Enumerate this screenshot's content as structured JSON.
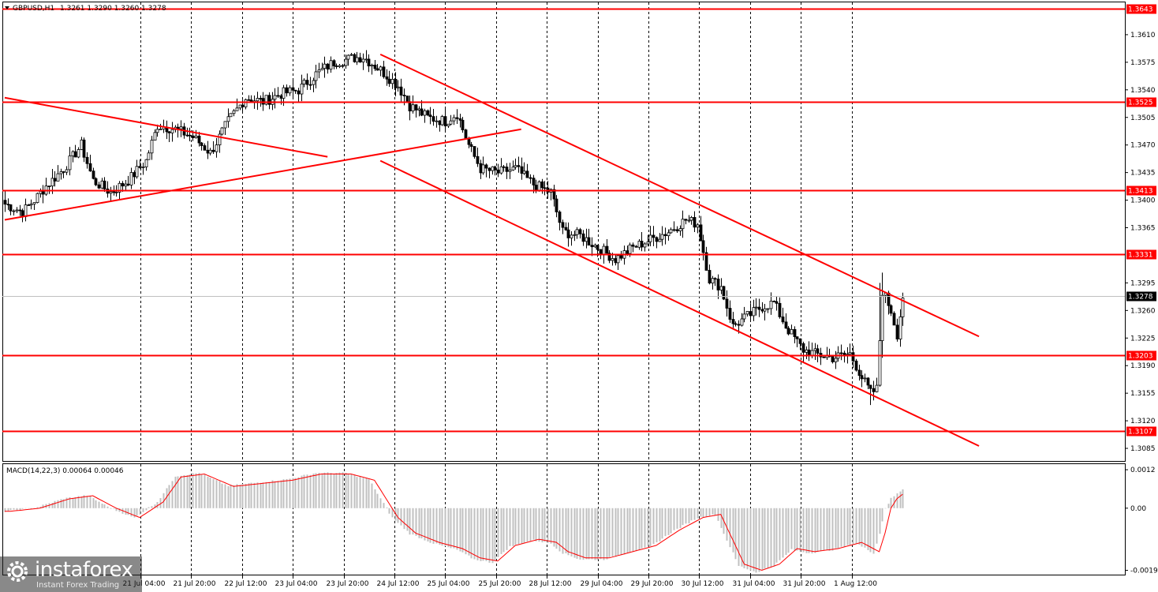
{
  "header": {
    "symbol_label": "GBPUSD,H1",
    "ohlc_label": "1.3261 1.3290 1.3260 1.3278"
  },
  "macd": {
    "label": "MACD(14,22,3) 0.00064 0.00046",
    "axis_labels": [
      "0.0012",
      "0.00",
      "-0.00194"
    ],
    "axis_values": [
      0.0012,
      0.0,
      -0.00194
    ],
    "range": [
      -0.00205,
      0.00135
    ]
  },
  "watermark": {
    "brand": "instaforex",
    "tagline": "Instant Forex Trading"
  },
  "colors": {
    "level_line": "#ff0000",
    "trend_line": "#ff0000",
    "candle": "#000000",
    "grid": "#000000",
    "macd_hist": "#c0c0c0",
    "macd_signal": "#ff0000",
    "price_tag_bg": "#ff0000"
  },
  "chart_data": {
    "type": "candlestick",
    "title": "GBPUSD,H1",
    "x_tick_labels": [
      "21 Jul 04:00",
      "21 Jul 20:00",
      "22 Jul 12:00",
      "23 Jul 04:00",
      "23 Jul 20:00",
      "24 Jul 12:00",
      "25 Jul 04:00",
      "25 Jul 20:00",
      "28 Jul 12:00",
      "29 Jul 04:00",
      "29 Jul 20:00",
      "30 Jul 12:00",
      "31 Jul 04:00",
      "31 Jul 20:00",
      "1 Aug 12:00"
    ],
    "y_tick_labels": [
      "1.3610",
      "1.3575",
      "1.3540",
      "1.3505",
      "1.3470",
      "1.3435",
      "1.3400",
      "1.3365",
      "1.3295",
      "1.3260",
      "1.3225",
      "1.3190",
      "1.3155",
      "1.3120",
      "1.3085"
    ],
    "y_tick_values": [
      1.361,
      1.3575,
      1.354,
      1.3505,
      1.347,
      1.3435,
      1.34,
      1.3365,
      1.3295,
      1.326,
      1.3225,
      1.319,
      1.3155,
      1.312,
      1.3085
    ],
    "ylim": [
      1.307,
      1.365
    ],
    "current_price": 1.3278,
    "current_price_label": "1.3278",
    "horizontal_levels": [
      {
        "value": 1.3643,
        "label": "1.3643"
      },
      {
        "value": 1.3525,
        "label": "1.3525"
      },
      {
        "value": 1.3413,
        "label": "1.3413"
      },
      {
        "value": 1.3331,
        "label": "1.3331"
      },
      {
        "value": 1.3203,
        "label": "1.3203"
      },
      {
        "value": 1.3107,
        "label": "1.3107"
      }
    ],
    "close_path": [
      [
        0,
        1.3395
      ],
      [
        6,
        1.3385
      ],
      [
        10,
        1.34
      ],
      [
        14,
        1.3418
      ],
      [
        20,
        1.344
      ],
      [
        26,
        1.347
      ],
      [
        30,
        1.3425
      ],
      [
        36,
        1.341
      ],
      [
        42,
        1.3425
      ],
      [
        48,
        1.345
      ],
      [
        52,
        1.3495
      ],
      [
        58,
        1.349
      ],
      [
        64,
        1.348
      ],
      [
        70,
        1.346
      ],
      [
        76,
        1.35
      ],
      [
        82,
        1.353
      ],
      [
        88,
        1.3525
      ],
      [
        94,
        1.3535
      ],
      [
        100,
        1.354
      ],
      [
        106,
        1.356
      ],
      [
        112,
        1.3575
      ],
      [
        118,
        1.358
      ],
      [
        122,
        1.3582
      ],
      [
        128,
        1.3565
      ],
      [
        134,
        1.3545
      ],
      [
        138,
        1.352
      ],
      [
        144,
        1.3505
      ],
      [
        150,
        1.35
      ],
      [
        154,
        1.351
      ],
      [
        158,
        1.347
      ],
      [
        162,
        1.344
      ],
      [
        168,
        1.3435
      ],
      [
        174,
        1.344
      ],
      [
        180,
        1.342
      ],
      [
        186,
        1.341
      ],
      [
        190,
        1.336
      ],
      [
        196,
        1.3355
      ],
      [
        202,
        1.334
      ],
      [
        208,
        1.3325
      ],
      [
        214,
        1.334
      ],
      [
        220,
        1.335
      ],
      [
        226,
        1.336
      ],
      [
        232,
        1.3375
      ],
      [
        236,
        1.337
      ],
      [
        240,
        1.33
      ],
      [
        244,
        1.329
      ],
      [
        248,
        1.324
      ],
      [
        252,
        1.325
      ],
      [
        258,
        1.3265
      ],
      [
        262,
        1.327
      ],
      [
        266,
        1.324
      ],
      [
        272,
        1.321
      ],
      [
        276,
        1.3205
      ],
      [
        282,
        1.32
      ],
      [
        288,
        1.3205
      ],
      [
        292,
        1.3175
      ],
      [
        295,
        1.3155
      ],
      [
        297,
        1.316
      ],
      [
        299,
        1.3285
      ],
      [
        302,
        1.326
      ],
      [
        304,
        1.323
      ],
      [
        306,
        1.3278
      ]
    ],
    "macd_path": [
      [
        0,
        -0.0001
      ],
      [
        10,
        0.0
      ],
      [
        20,
        0.0003
      ],
      [
        28,
        0.0004
      ],
      [
        36,
        0.0
      ],
      [
        44,
        -0.0003
      ],
      [
        52,
        0.0002
      ],
      [
        58,
        0.001
      ],
      [
        66,
        0.0011
      ],
      [
        76,
        0.0007
      ],
      [
        86,
        0.0008
      ],
      [
        96,
        0.0009
      ],
      [
        106,
        0.0011
      ],
      [
        116,
        0.0011
      ],
      [
        124,
        0.0009
      ],
      [
        132,
        -0.0003
      ],
      [
        138,
        -0.0008
      ],
      [
        146,
        -0.0011
      ],
      [
        154,
        -0.0013
      ],
      [
        160,
        -0.0016
      ],
      [
        166,
        -0.0017
      ],
      [
        172,
        -0.0012
      ],
      [
        180,
        -0.001
      ],
      [
        186,
        -0.0011
      ],
      [
        190,
        -0.0014
      ],
      [
        196,
        -0.0016
      ],
      [
        204,
        -0.0016
      ],
      [
        212,
        -0.0014
      ],
      [
        220,
        -0.0012
      ],
      [
        228,
        -0.0007
      ],
      [
        236,
        -0.0003
      ],
      [
        242,
        -0.0002
      ],
      [
        246,
        -0.001
      ],
      [
        250,
        -0.0018
      ],
      [
        256,
        -0.002
      ],
      [
        262,
        -0.0018
      ],
      [
        268,
        -0.0013
      ],
      [
        274,
        -0.0014
      ],
      [
        282,
        -0.0013
      ],
      [
        290,
        -0.0011
      ],
      [
        296,
        -0.0014
      ],
      [
        298,
        -0.0008
      ],
      [
        300,
        0.0
      ],
      [
        302,
        0.0003
      ],
      [
        306,
        0.0006
      ]
    ],
    "trend_lines": [
      {
        "name": "upper-channel-line",
        "points": [
          [
            128,
            1.3585
          ],
          [
            332,
            1.3227
          ]
        ]
      },
      {
        "name": "lower-channel-line",
        "points": [
          [
            128,
            1.345
          ],
          [
            332,
            1.3088
          ]
        ]
      },
      {
        "name": "rising-support-line",
        "points": [
          [
            0,
            1.3375
          ],
          [
            176,
            1.349
          ]
        ]
      },
      {
        "name": "falling-resistance-line",
        "points": [
          [
            0,
            1.353
          ],
          [
            110,
            1.3455
          ]
        ]
      }
    ]
  }
}
